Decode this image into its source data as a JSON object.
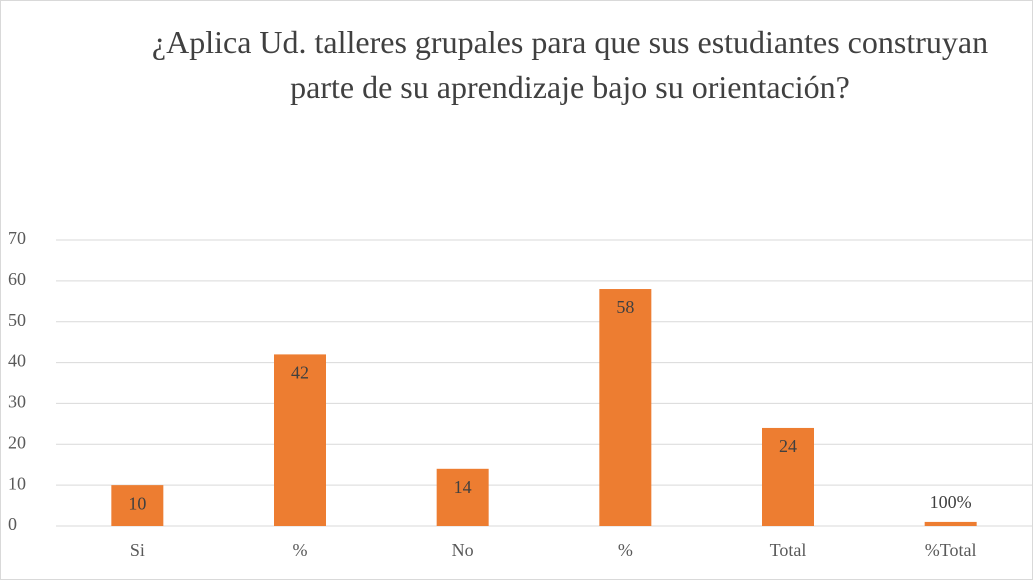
{
  "chart_data": {
    "type": "bar",
    "title": "¿Aplica Ud. talleres grupales para que sus estudiantes construyan parte de su aprendizaje bajo su orientación?",
    "categories": [
      "Si",
      "%",
      "No",
      "%",
      "Total",
      "%Total"
    ],
    "values": [
      10,
      42,
      14,
      58,
      24,
      1
    ],
    "value_labels": [
      "10",
      "42",
      "14",
      "58",
      "24",
      "100%"
    ],
    "color": "#ed7d31",
    "ylim": [
      0,
      70
    ],
    "yticks": [
      0,
      10,
      20,
      30,
      40,
      50,
      60,
      70
    ],
    "grid": true
  }
}
